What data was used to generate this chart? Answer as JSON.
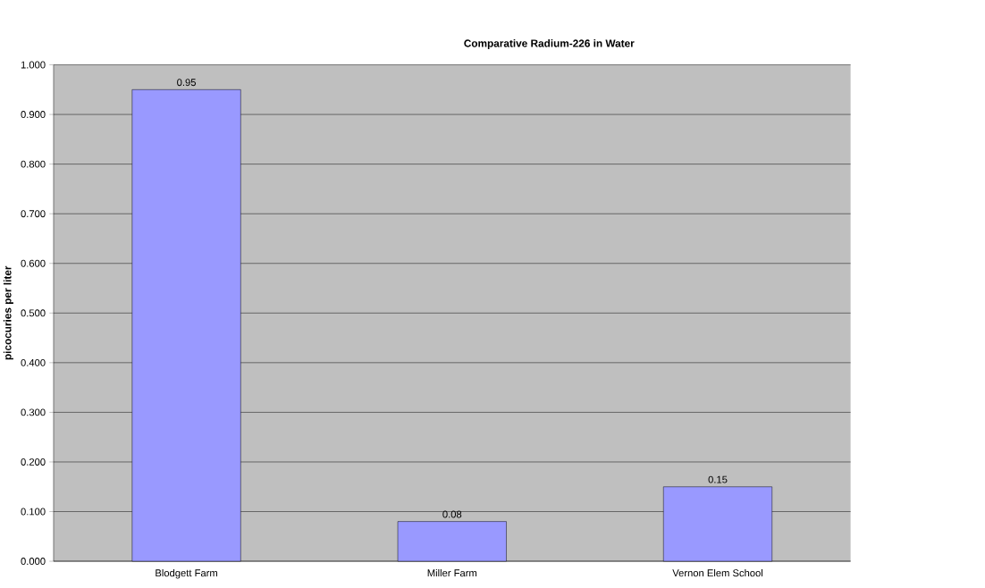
{
  "chart_data": {
    "type": "bar",
    "title": "Comparative Radium-226 in Water",
    "ylabel": "picocuries per liter",
    "categories": [
      "Blodgett Farm",
      "Miller Farm",
      "Vernon Elem School"
    ],
    "values": [
      0.95,
      0.08,
      0.15
    ],
    "color": "#9999ff",
    "data_labels": true,
    "grid": "y",
    "ylim": [
      0,
      1
    ],
    "yticks": [
      {
        "value": 0,
        "label": "0.000"
      },
      {
        "value": 0.1,
        "label": "0.100"
      },
      {
        "value": 0.2,
        "label": "0.200"
      },
      {
        "value": 0.3,
        "label": "0.300"
      },
      {
        "value": 0.4,
        "label": "0.400"
      },
      {
        "value": 0.5,
        "label": "0.500"
      },
      {
        "value": 0.6,
        "label": "0.600"
      },
      {
        "value": 0.7,
        "label": "0.700"
      },
      {
        "value": 0.8,
        "label": "0.800"
      },
      {
        "value": 0.9,
        "label": "0.900"
      },
      {
        "value": 1,
        "label": "1.000"
      }
    ]
  }
}
